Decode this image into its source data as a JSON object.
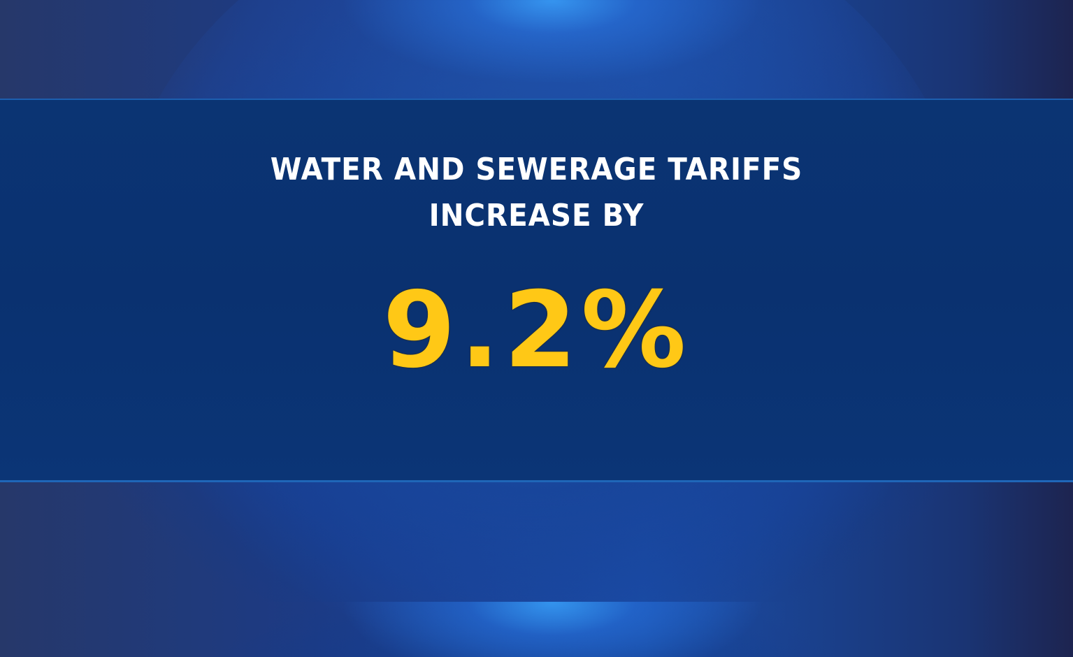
{
  "graphic": {
    "headline_line1": "WATER AND SEWERAGE TARIFFS",
    "headline_line2": "INCREASE BY",
    "value": "9.2%"
  },
  "colors": {
    "banner": "#0a3170",
    "value_text": "#ffc816",
    "headline_text": "#ffffff"
  }
}
